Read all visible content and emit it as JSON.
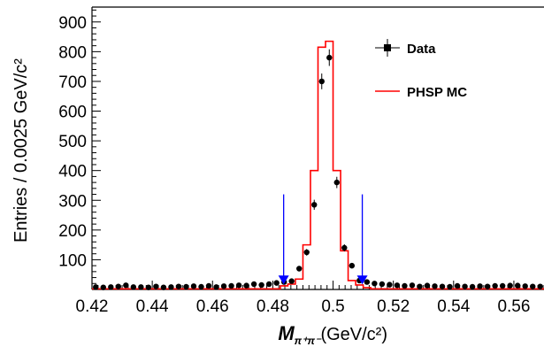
{
  "chart_data": {
    "type": "line",
    "title": "",
    "xlabel": {
      "main": "M",
      "sub": "π⁺π⁻",
      "unit": "(GeV/c²)"
    },
    "ylabel": "Entries / 0.0025 GeV/c²",
    "xlim": [
      0.42,
      0.57
    ],
    "ylim": [
      0,
      950
    ],
    "x_ticks": [
      "0.42",
      "0.44",
      "0.46",
      "0.48",
      "0.5",
      "0.52",
      "0.54",
      "0.56"
    ],
    "x_tick_values": [
      0.42,
      0.44,
      0.46,
      0.48,
      0.5,
      0.52,
      0.54,
      0.56
    ],
    "y_ticks": [
      "100",
      "200",
      "300",
      "400",
      "500",
      "600",
      "700",
      "800",
      "900"
    ],
    "y_tick_values": [
      100,
      200,
      300,
      400,
      500,
      600,
      700,
      800,
      900
    ],
    "bin_width": 0.0025,
    "legend": {
      "position": "top-right",
      "entries": [
        {
          "label": "Data",
          "style": "marker-errorbar",
          "color": "#000000"
        },
        {
          "label": "PHSP MC",
          "style": "histogram",
          "color": "#ff0000"
        }
      ]
    },
    "series": [
      {
        "name": "Data",
        "kind": "points-with-errors",
        "color": "#000000",
        "x": [
          0.42125,
          0.42375,
          0.42625,
          0.42875,
          0.43125,
          0.43375,
          0.43625,
          0.43875,
          0.44125,
          0.44375,
          0.44625,
          0.44875,
          0.45125,
          0.45375,
          0.45625,
          0.45875,
          0.46125,
          0.46375,
          0.46625,
          0.46875,
          0.47125,
          0.47375,
          0.47625,
          0.47875,
          0.48125,
          0.48375,
          0.48625,
          0.48875,
          0.49125,
          0.49375,
          0.49625,
          0.49875,
          0.50125,
          0.50375,
          0.50625,
          0.50875,
          0.51125,
          0.51375,
          0.51625,
          0.51875,
          0.52125,
          0.52375,
          0.52625,
          0.52875,
          0.53125,
          0.53375,
          0.53625,
          0.53875,
          0.54125,
          0.54375,
          0.54625,
          0.54875,
          0.55125,
          0.55375,
          0.55625,
          0.55875,
          0.56125,
          0.56375,
          0.56625,
          0.56875
        ],
        "y": [
          8,
          7,
          8,
          10,
          14,
          8,
          8,
          7,
          10,
          7,
          8,
          10,
          9,
          11,
          9,
          12,
          8,
          11,
          12,
          14,
          13,
          18,
          15,
          18,
          22,
          25,
          28,
          70,
          125,
          285,
          700,
          780,
          360,
          140,
          80,
          30,
          25,
          20,
          18,
          16,
          14,
          12,
          14,
          10,
          13,
          11,
          10,
          9,
          12,
          10,
          9,
          11,
          10,
          12,
          12,
          13,
          13,
          11,
          10,
          10
        ]
      },
      {
        "name": "PHSP MC",
        "kind": "step-histogram",
        "color": "#ff0000",
        "edges": [
          0.42,
          0.4825,
          0.485,
          0.4875,
          0.49,
          0.4925,
          0.495,
          0.4975,
          0.5,
          0.5025,
          0.505,
          0.5075,
          0.51,
          0.5125,
          0.57
        ],
        "values": [
          2,
          12,
          18,
          35,
          150,
          400,
          815,
          835,
          400,
          130,
          30,
          15,
          6,
          2
        ]
      }
    ],
    "annotations": [
      {
        "type": "arrow",
        "x": 0.4836,
        "y_from": 320,
        "y_to": 20,
        "color": "#0000ff",
        "direction": "down"
      },
      {
        "type": "arrow",
        "x": 0.5097,
        "y_from": 320,
        "y_to": 20,
        "color": "#0000ff",
        "direction": "down"
      }
    ]
  }
}
